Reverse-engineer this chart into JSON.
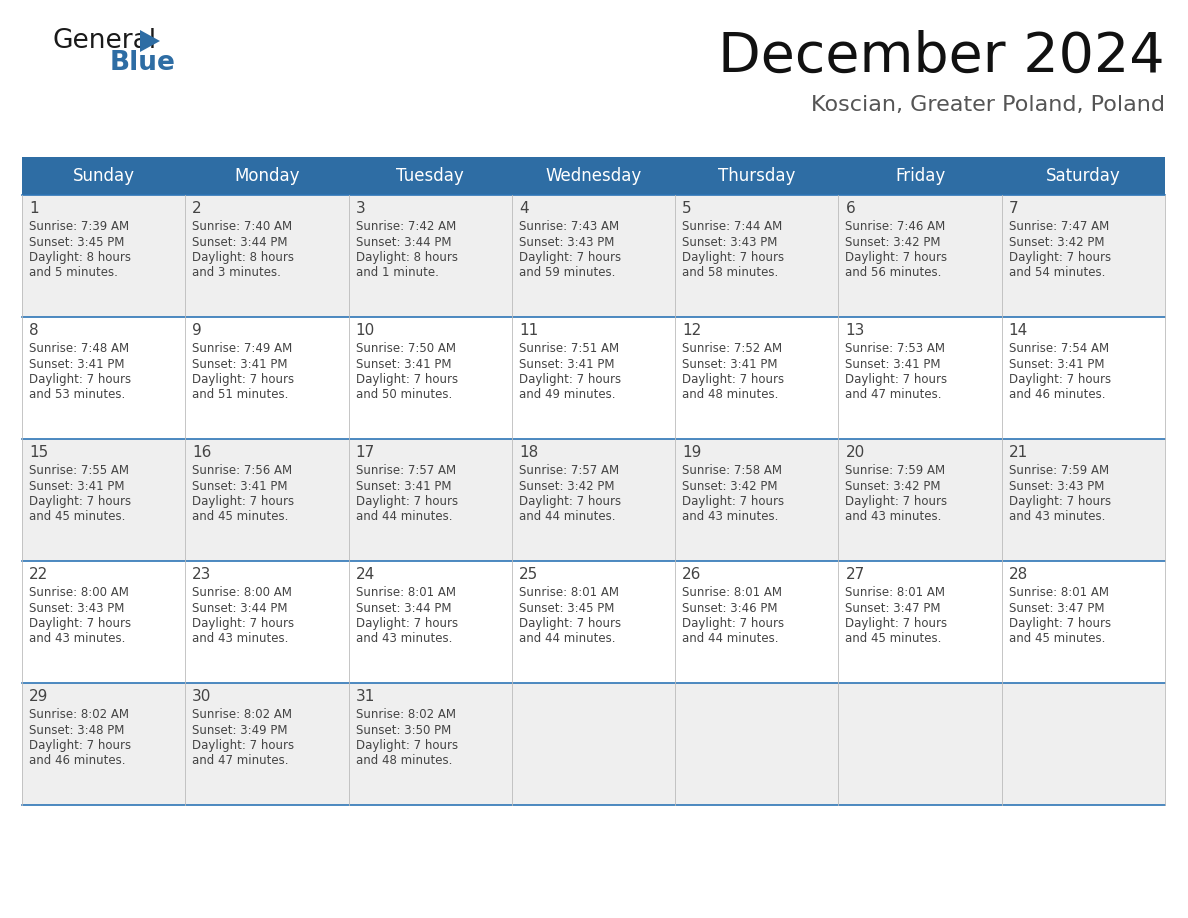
{
  "title": "December 2024",
  "subtitle": "Koscian, Greater Poland, Poland",
  "header_color": "#2E6DA4",
  "header_text_color": "#FFFFFF",
  "day_names": [
    "Sunday",
    "Monday",
    "Tuesday",
    "Wednesday",
    "Thursday",
    "Friday",
    "Saturday"
  ],
  "bg_color": "#FFFFFF",
  "cell_bg_even": "#EFEFEF",
  "cell_bg_odd": "#FFFFFF",
  "text_color": "#444444",
  "line_color": "#2E75B6",
  "days": [
    {
      "day": 1,
      "col": 0,
      "row": 0,
      "sunrise": "7:39 AM",
      "sunset": "3:45 PM",
      "daylight_h": "8 hours",
      "daylight_m": "and 5 minutes."
    },
    {
      "day": 2,
      "col": 1,
      "row": 0,
      "sunrise": "7:40 AM",
      "sunset": "3:44 PM",
      "daylight_h": "8 hours",
      "daylight_m": "and 3 minutes."
    },
    {
      "day": 3,
      "col": 2,
      "row": 0,
      "sunrise": "7:42 AM",
      "sunset": "3:44 PM",
      "daylight_h": "8 hours",
      "daylight_m": "and 1 minute."
    },
    {
      "day": 4,
      "col": 3,
      "row": 0,
      "sunrise": "7:43 AM",
      "sunset": "3:43 PM",
      "daylight_h": "7 hours",
      "daylight_m": "and 59 minutes."
    },
    {
      "day": 5,
      "col": 4,
      "row": 0,
      "sunrise": "7:44 AM",
      "sunset": "3:43 PM",
      "daylight_h": "7 hours",
      "daylight_m": "and 58 minutes."
    },
    {
      "day": 6,
      "col": 5,
      "row": 0,
      "sunrise": "7:46 AM",
      "sunset": "3:42 PM",
      "daylight_h": "7 hours",
      "daylight_m": "and 56 minutes."
    },
    {
      "day": 7,
      "col": 6,
      "row": 0,
      "sunrise": "7:47 AM",
      "sunset": "3:42 PM",
      "daylight_h": "7 hours",
      "daylight_m": "and 54 minutes."
    },
    {
      "day": 8,
      "col": 0,
      "row": 1,
      "sunrise": "7:48 AM",
      "sunset": "3:41 PM",
      "daylight_h": "7 hours",
      "daylight_m": "and 53 minutes."
    },
    {
      "day": 9,
      "col": 1,
      "row": 1,
      "sunrise": "7:49 AM",
      "sunset": "3:41 PM",
      "daylight_h": "7 hours",
      "daylight_m": "and 51 minutes."
    },
    {
      "day": 10,
      "col": 2,
      "row": 1,
      "sunrise": "7:50 AM",
      "sunset": "3:41 PM",
      "daylight_h": "7 hours",
      "daylight_m": "and 50 minutes."
    },
    {
      "day": 11,
      "col": 3,
      "row": 1,
      "sunrise": "7:51 AM",
      "sunset": "3:41 PM",
      "daylight_h": "7 hours",
      "daylight_m": "and 49 minutes."
    },
    {
      "day": 12,
      "col": 4,
      "row": 1,
      "sunrise": "7:52 AM",
      "sunset": "3:41 PM",
      "daylight_h": "7 hours",
      "daylight_m": "and 48 minutes."
    },
    {
      "day": 13,
      "col": 5,
      "row": 1,
      "sunrise": "7:53 AM",
      "sunset": "3:41 PM",
      "daylight_h": "7 hours",
      "daylight_m": "and 47 minutes."
    },
    {
      "day": 14,
      "col": 6,
      "row": 1,
      "sunrise": "7:54 AM",
      "sunset": "3:41 PM",
      "daylight_h": "7 hours",
      "daylight_m": "and 46 minutes."
    },
    {
      "day": 15,
      "col": 0,
      "row": 2,
      "sunrise": "7:55 AM",
      "sunset": "3:41 PM",
      "daylight_h": "7 hours",
      "daylight_m": "and 45 minutes."
    },
    {
      "day": 16,
      "col": 1,
      "row": 2,
      "sunrise": "7:56 AM",
      "sunset": "3:41 PM",
      "daylight_h": "7 hours",
      "daylight_m": "and 45 minutes."
    },
    {
      "day": 17,
      "col": 2,
      "row": 2,
      "sunrise": "7:57 AM",
      "sunset": "3:41 PM",
      "daylight_h": "7 hours",
      "daylight_m": "and 44 minutes."
    },
    {
      "day": 18,
      "col": 3,
      "row": 2,
      "sunrise": "7:57 AM",
      "sunset": "3:42 PM",
      "daylight_h": "7 hours",
      "daylight_m": "and 44 minutes."
    },
    {
      "day": 19,
      "col": 4,
      "row": 2,
      "sunrise": "7:58 AM",
      "sunset": "3:42 PM",
      "daylight_h": "7 hours",
      "daylight_m": "and 43 minutes."
    },
    {
      "day": 20,
      "col": 5,
      "row": 2,
      "sunrise": "7:59 AM",
      "sunset": "3:42 PM",
      "daylight_h": "7 hours",
      "daylight_m": "and 43 minutes."
    },
    {
      "day": 21,
      "col": 6,
      "row": 2,
      "sunrise": "7:59 AM",
      "sunset": "3:43 PM",
      "daylight_h": "7 hours",
      "daylight_m": "and 43 minutes."
    },
    {
      "day": 22,
      "col": 0,
      "row": 3,
      "sunrise": "8:00 AM",
      "sunset": "3:43 PM",
      "daylight_h": "7 hours",
      "daylight_m": "and 43 minutes."
    },
    {
      "day": 23,
      "col": 1,
      "row": 3,
      "sunrise": "8:00 AM",
      "sunset": "3:44 PM",
      "daylight_h": "7 hours",
      "daylight_m": "and 43 minutes."
    },
    {
      "day": 24,
      "col": 2,
      "row": 3,
      "sunrise": "8:01 AM",
      "sunset": "3:44 PM",
      "daylight_h": "7 hours",
      "daylight_m": "and 43 minutes."
    },
    {
      "day": 25,
      "col": 3,
      "row": 3,
      "sunrise": "8:01 AM",
      "sunset": "3:45 PM",
      "daylight_h": "7 hours",
      "daylight_m": "and 44 minutes."
    },
    {
      "day": 26,
      "col": 4,
      "row": 3,
      "sunrise": "8:01 AM",
      "sunset": "3:46 PM",
      "daylight_h": "7 hours",
      "daylight_m": "and 44 minutes."
    },
    {
      "day": 27,
      "col": 5,
      "row": 3,
      "sunrise": "8:01 AM",
      "sunset": "3:47 PM",
      "daylight_h": "7 hours",
      "daylight_m": "and 45 minutes."
    },
    {
      "day": 28,
      "col": 6,
      "row": 3,
      "sunrise": "8:01 AM",
      "sunset": "3:47 PM",
      "daylight_h": "7 hours",
      "daylight_m": "and 45 minutes."
    },
    {
      "day": 29,
      "col": 0,
      "row": 4,
      "sunrise": "8:02 AM",
      "sunset": "3:48 PM",
      "daylight_h": "7 hours",
      "daylight_m": "and 46 minutes."
    },
    {
      "day": 30,
      "col": 1,
      "row": 4,
      "sunrise": "8:02 AM",
      "sunset": "3:49 PM",
      "daylight_h": "7 hours",
      "daylight_m": "and 47 minutes."
    },
    {
      "day": 31,
      "col": 2,
      "row": 4,
      "sunrise": "8:02 AM",
      "sunset": "3:50 PM",
      "daylight_h": "7 hours",
      "daylight_m": "and 48 minutes."
    }
  ],
  "num_rows": 5,
  "logo_color_general": "#1a1a1a",
  "logo_color_blue": "#2E6DA4",
  "logo_triangle_color": "#2E6DA4",
  "title_fontsize": 40,
  "subtitle_fontsize": 16,
  "header_fontsize": 12,
  "day_num_fontsize": 11,
  "cell_text_fontsize": 8.5
}
